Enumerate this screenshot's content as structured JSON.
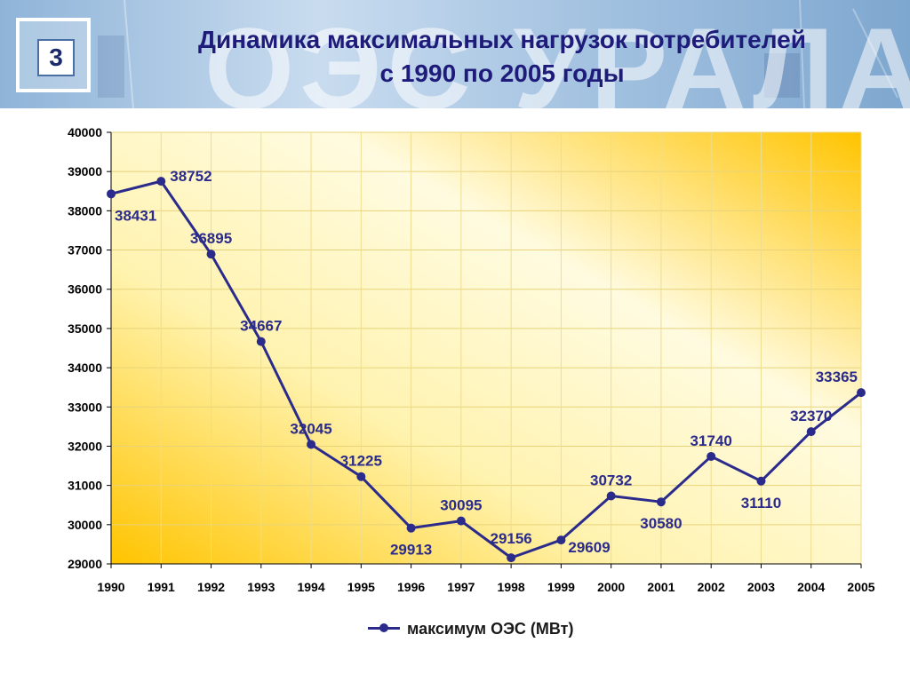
{
  "header": {
    "slide_number": "3",
    "watermark": "ОЭС УРАЛА",
    "title_line1": "Динамика максимальных нагрузок потребителей",
    "title_line2": "с 1990 по 2005 годы"
  },
  "colors": {
    "title": "#1f1b7a",
    "series": "#2b2b8c",
    "label": "#2b2b8c",
    "plot_bg_light": "#fffbe0",
    "plot_bg_warm": "#ffc400"
  },
  "chart_data": {
    "type": "line",
    "categories": [
      "1990",
      "1991",
      "1992",
      "1993",
      "1994",
      "1995",
      "1996",
      "1997",
      "1998",
      "1999",
      "2000",
      "2001",
      "2002",
      "2003",
      "2004",
      "2005"
    ],
    "series": [
      {
        "name": "максимум ОЭС (МВт)",
        "values": [
          38431,
          38752,
          36895,
          34667,
          32045,
          31225,
          29913,
          30095,
          29156,
          29609,
          30732,
          30580,
          31740,
          31110,
          32370,
          33365
        ]
      }
    ],
    "ylim": [
      29000,
      40000
    ],
    "yticks": [
      29000,
      30000,
      31000,
      32000,
      33000,
      34000,
      35000,
      36000,
      37000,
      38000,
      39000,
      40000
    ],
    "grid": true,
    "legend_position": "bottom"
  }
}
